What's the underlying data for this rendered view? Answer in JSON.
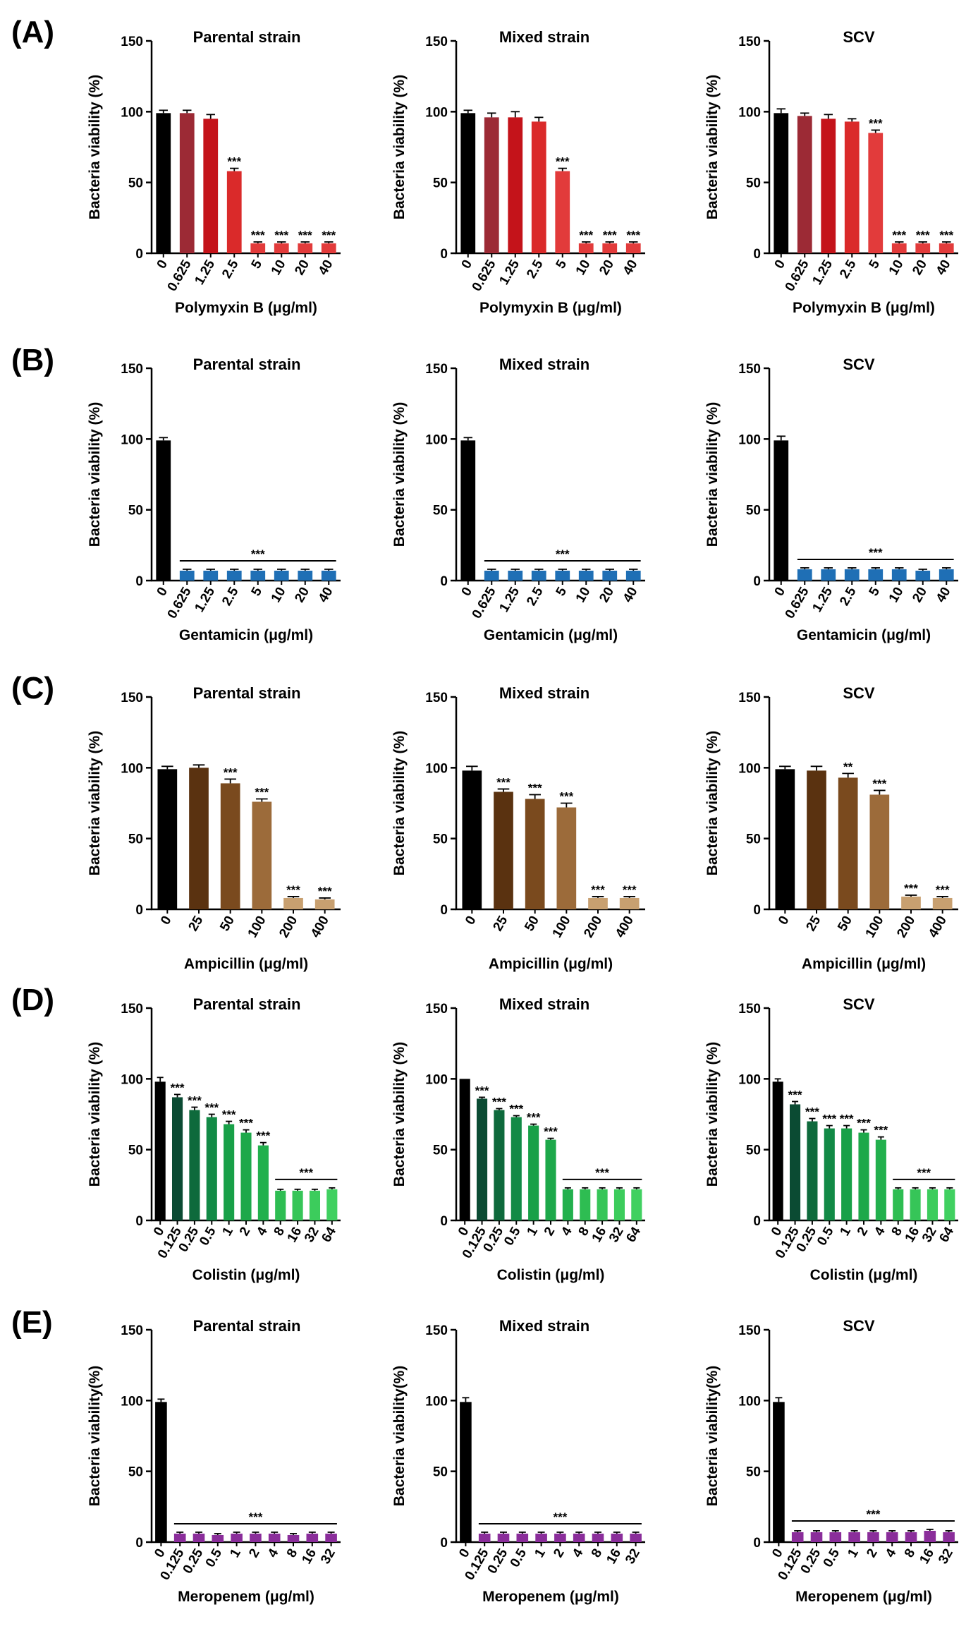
{
  "figure": {
    "row_labels": [
      "(A)",
      "(B)",
      "(C)",
      "(D)",
      "(E)"
    ],
    "panel_titles": [
      "Parental strain",
      "Mixed strain",
      "SCV"
    ]
  },
  "chart_data": [
    {
      "type": "bar",
      "row": "A",
      "title": "Parental strain",
      "xlabel": "Polymyxin B (μg/ml)",
      "ylabel": "Bacteria viability (%)",
      "ylim": [
        0,
        150
      ],
      "yticks": [
        0,
        50,
        100,
        150
      ],
      "categories": [
        "0",
        "0.625",
        "1.25",
        "2.5",
        "5",
        "10",
        "20",
        "40"
      ],
      "values": [
        99,
        99,
        95,
        58,
        7,
        7,
        7,
        7
      ],
      "errors": [
        2,
        2,
        3,
        2,
        1,
        1,
        1,
        1
      ],
      "significance": [
        "",
        "",
        "",
        "***",
        "***",
        "***",
        "***",
        "***"
      ],
      "group_sig": null,
      "colors": [
        "#000000",
        "#9c2a35",
        "#c4131a",
        "#da2a2a",
        "#e23b3b",
        "#e23b3b",
        "#e23b3b",
        "#e23b3b"
      ]
    },
    {
      "type": "bar",
      "row": "A",
      "title": "Mixed strain",
      "xlabel": "Polymyxin B (μg/ml)",
      "ylabel": "Bacteria viability (%)",
      "ylim": [
        0,
        150
      ],
      "yticks": [
        0,
        50,
        100,
        150
      ],
      "categories": [
        "0",
        "0.625",
        "1.25",
        "2.5",
        "5",
        "10",
        "20",
        "40"
      ],
      "values": [
        99,
        96,
        96,
        93,
        58,
        7,
        7,
        7
      ],
      "errors": [
        2,
        3,
        4,
        3,
        2,
        1,
        1,
        1
      ],
      "significance": [
        "",
        "",
        "",
        "",
        "***",
        "***",
        "***",
        "***"
      ],
      "group_sig": null,
      "colors": [
        "#000000",
        "#9c2a35",
        "#c4131a",
        "#da2a2a",
        "#e23b3b",
        "#e23b3b",
        "#e23b3b",
        "#e23b3b"
      ]
    },
    {
      "type": "bar",
      "row": "A",
      "title": "SCV",
      "xlabel": "Polymyxin B (μg/ml)",
      "ylabel": "Bacteria viability (%)",
      "ylim": [
        0,
        150
      ],
      "yticks": [
        0,
        50,
        100,
        150
      ],
      "categories": [
        "0",
        "0.625",
        "1.25",
        "2.5",
        "5",
        "10",
        "20",
        "40"
      ],
      "values": [
        99,
        97,
        95,
        93,
        85,
        7,
        7,
        7
      ],
      "errors": [
        3,
        2,
        3,
        2,
        2,
        1,
        1,
        1
      ],
      "significance": [
        "",
        "",
        "",
        "",
        "***",
        "***",
        "***",
        "***"
      ],
      "group_sig": null,
      "colors": [
        "#000000",
        "#9c2a35",
        "#c4131a",
        "#da2a2a",
        "#e23b3b",
        "#e23b3b",
        "#e23b3b",
        "#e23b3b"
      ]
    },
    {
      "type": "bar",
      "row": "B",
      "title": "Parental strain",
      "xlabel": "Gentamicin (μg/ml)",
      "ylabel": "Bacteria viability (%)",
      "ylim": [
        0,
        150
      ],
      "yticks": [
        0,
        50,
        100,
        150
      ],
      "categories": [
        "0",
        "0.625",
        "1.25",
        "2.5",
        "5",
        "10",
        "20",
        "40"
      ],
      "values": [
        99,
        7,
        7,
        7,
        7,
        7,
        7,
        7
      ],
      "errors": [
        2,
        1,
        1,
        1,
        1,
        1,
        1,
        1
      ],
      "significance": [
        "",
        "",
        "",
        "",
        "",
        "",
        "",
        ""
      ],
      "group_sig": {
        "label": "***",
        "from": 1,
        "to": 7
      },
      "colors": [
        "#000000",
        "#1f6fb5",
        "#1f6fb5",
        "#1f6fb5",
        "#1f6fb5",
        "#1f6fb5",
        "#1f6fb5",
        "#1f6fb5"
      ]
    },
    {
      "type": "bar",
      "row": "B",
      "title": "Mixed strain",
      "xlabel": "Gentamicin (μg/ml)",
      "ylabel": "Bacteria viability (%)",
      "ylim": [
        0,
        150
      ],
      "yticks": [
        0,
        50,
        100,
        150
      ],
      "categories": [
        "0",
        "0.625",
        "1.25",
        "2.5",
        "5",
        "10",
        "20",
        "40"
      ],
      "values": [
        99,
        7,
        7,
        7,
        7,
        7,
        7,
        7
      ],
      "errors": [
        2,
        1,
        1,
        1,
        1,
        1,
        1,
        1
      ],
      "significance": [
        "",
        "",
        "",
        "",
        "",
        "",
        "",
        ""
      ],
      "group_sig": {
        "label": "***",
        "from": 1,
        "to": 7
      },
      "colors": [
        "#000000",
        "#1f6fb5",
        "#1f6fb5",
        "#1f6fb5",
        "#1f6fb5",
        "#1f6fb5",
        "#1f6fb5",
        "#1f6fb5"
      ]
    },
    {
      "type": "bar",
      "row": "B",
      "title": "SCV",
      "xlabel": "Gentamicin (μg/ml)",
      "ylabel": "Bacteria viability (%)",
      "ylim": [
        0,
        150
      ],
      "yticks": [
        0,
        50,
        100,
        150
      ],
      "categories": [
        "0",
        "0.625",
        "1.25",
        "2.5",
        "5",
        "10",
        "20",
        "40"
      ],
      "values": [
        99,
        8,
        8,
        8,
        8,
        8,
        7,
        8
      ],
      "errors": [
        3,
        1,
        1,
        1,
        1,
        1,
        1,
        1
      ],
      "significance": [
        "",
        "",
        "",
        "",
        "",
        "",
        "",
        ""
      ],
      "group_sig": {
        "label": "***",
        "from": 1,
        "to": 7
      },
      "colors": [
        "#000000",
        "#1f6fb5",
        "#1f6fb5",
        "#1f6fb5",
        "#1f6fb5",
        "#1f6fb5",
        "#1f6fb5",
        "#1f6fb5"
      ]
    },
    {
      "type": "bar",
      "row": "C",
      "title": "Parental strain",
      "xlabel": "Ampicillin (μg/ml)",
      "ylabel": "Bacteria viability (%)",
      "ylim": [
        0,
        150
      ],
      "yticks": [
        0,
        50,
        100,
        150
      ],
      "categories": [
        "0",
        "25",
        "50",
        "100",
        "200",
        "400"
      ],
      "values": [
        99,
        100,
        89,
        76,
        8,
        7
      ],
      "errors": [
        2,
        2,
        3,
        2,
        1,
        1
      ],
      "significance": [
        "",
        "",
        "***",
        "***",
        "***",
        "***"
      ],
      "group_sig": null,
      "colors": [
        "#000000",
        "#5a3210",
        "#7a4a1e",
        "#9c6b3a",
        "#c8a070",
        "#c8a070"
      ]
    },
    {
      "type": "bar",
      "row": "C",
      "title": "Mixed strain",
      "xlabel": "Ampicillin (μg/ml)",
      "ylabel": "Bacteria viability (%)",
      "ylim": [
        0,
        150
      ],
      "yticks": [
        0,
        50,
        100,
        150
      ],
      "categories": [
        "0",
        "25",
        "50",
        "100",
        "200",
        "400"
      ],
      "values": [
        98,
        83,
        78,
        72,
        8,
        8
      ],
      "errors": [
        3,
        2,
        3,
        3,
        1,
        1
      ],
      "significance": [
        "",
        "***",
        "***",
        "***",
        "***",
        "***"
      ],
      "group_sig": null,
      "colors": [
        "#000000",
        "#5a3210",
        "#7a4a1e",
        "#9c6b3a",
        "#c8a070",
        "#c8a070"
      ]
    },
    {
      "type": "bar",
      "row": "C",
      "title": "SCV",
      "xlabel": "Ampicillin (μg/ml)",
      "ylabel": "Bacteria viability (%)",
      "ylim": [
        0,
        150
      ],
      "yticks": [
        0,
        50,
        100,
        150
      ],
      "categories": [
        "0",
        "25",
        "50",
        "100",
        "200",
        "400"
      ],
      "values": [
        99,
        98,
        93,
        81,
        9,
        8
      ],
      "errors": [
        2,
        3,
        3,
        3,
        1,
        1
      ],
      "significance": [
        "",
        "",
        "**",
        "***",
        "***",
        "***"
      ],
      "group_sig": null,
      "colors": [
        "#000000",
        "#5a3210",
        "#7a4a1e",
        "#9c6b3a",
        "#c8a070",
        "#c8a070"
      ]
    },
    {
      "type": "bar",
      "row": "D",
      "title": "Parental strain",
      "xlabel": "Colistin (μg/ml)",
      "ylabel": "Bacteria viability (%)",
      "ylim": [
        0,
        150
      ],
      "yticks": [
        0,
        50,
        100,
        150
      ],
      "categories": [
        "0",
        "0.125",
        "0.25",
        "0.5",
        "1",
        "2",
        "4",
        "8",
        "16",
        "32",
        "64"
      ],
      "values": [
        98,
        87,
        78,
        73,
        68,
        62,
        53,
        21,
        21,
        21,
        22
      ],
      "errors": [
        3,
        2,
        2,
        2,
        2,
        2,
        2,
        1,
        1,
        1,
        1
      ],
      "significance": [
        "",
        "***",
        "***",
        "***",
        "***",
        "***",
        "***",
        "",
        "",
        "",
        ""
      ],
      "group_sig": {
        "label": "***",
        "from": 7,
        "to": 10
      },
      "colors": [
        "#000000",
        "#0b4b33",
        "#0e6a3c",
        "#128a46",
        "#18a048",
        "#1da84a",
        "#22b04d",
        "#2ebd52",
        "#36c558",
        "#3ccc5c",
        "#40d060"
      ]
    },
    {
      "type": "bar",
      "row": "D",
      "title": "Mixed strain",
      "xlabel": "Colistin (μg/ml)",
      "ylabel": "Bacteria viability (%)",
      "ylim": [
        0,
        150
      ],
      "yticks": [
        0,
        50,
        100,
        150
      ],
      "categories": [
        "0",
        "0.125",
        "0.25",
        "0.5",
        "1",
        "2",
        "4",
        "8",
        "16",
        "32",
        "64"
      ],
      "values": [
        100,
        86,
        78,
        73,
        67,
        57,
        22,
        22,
        22,
        22,
        22
      ],
      "errors": [
        0,
        1,
        1,
        1,
        1,
        1,
        1,
        1,
        1,
        1,
        1
      ],
      "significance": [
        "",
        "***",
        "***",
        "***",
        "***",
        "***",
        "",
        "",
        "",
        "",
        ""
      ],
      "group_sig": {
        "label": "***",
        "from": 6,
        "to": 10
      },
      "colors": [
        "#000000",
        "#0b4b33",
        "#0e6a3c",
        "#128a46",
        "#18a048",
        "#1da84a",
        "#22b04d",
        "#2ebd52",
        "#36c558",
        "#3ccc5c",
        "#40d060"
      ]
    },
    {
      "type": "bar",
      "row": "D",
      "title": "SCV",
      "xlabel": "Colistin (μg/ml)",
      "ylabel": "Bacteria viability (%)",
      "ylim": [
        0,
        150
      ],
      "yticks": [
        0,
        50,
        100,
        150
      ],
      "categories": [
        "0",
        "0.125",
        "0.25",
        "0.5",
        "1",
        "2",
        "4",
        "8",
        "16",
        "32",
        "64"
      ],
      "values": [
        98,
        82,
        70,
        65,
        65,
        62,
        57,
        22,
        22,
        22,
        22
      ],
      "errors": [
        2,
        2,
        2,
        2,
        2,
        2,
        2,
        1,
        1,
        1,
        1
      ],
      "significance": [
        "",
        "***",
        "***",
        "***",
        "***",
        "***",
        "***",
        "",
        "",
        "",
        ""
      ],
      "group_sig": {
        "label": "***",
        "from": 7,
        "to": 10
      },
      "colors": [
        "#000000",
        "#0b4b33",
        "#0e6a3c",
        "#128a46",
        "#18a048",
        "#1da84a",
        "#22b04d",
        "#2ebd52",
        "#36c558",
        "#3ccc5c",
        "#40d060"
      ]
    },
    {
      "type": "bar",
      "row": "E",
      "title": "Parental strain",
      "xlabel": "Meropenem (μg/ml)",
      "ylabel": "Bacteria viability(%)",
      "ylim": [
        0,
        150
      ],
      "yticks": [
        0,
        50,
        100,
        150
      ],
      "categories": [
        "0",
        "0.125",
        "0.25",
        "0.5",
        "1",
        "2",
        "4",
        "8",
        "16",
        "32"
      ],
      "values": [
        99,
        6,
        6,
        5,
        6,
        6,
        6,
        5,
        6,
        6
      ],
      "errors": [
        2,
        1,
        1,
        1,
        1,
        1,
        1,
        1,
        1,
        1
      ],
      "significance": [
        "",
        "",
        "",
        "",
        "",
        "",
        "",
        "",
        "",
        ""
      ],
      "group_sig": {
        "label": "***",
        "from": 1,
        "to": 9
      },
      "colors": [
        "#000000",
        "#8a2d9a",
        "#8a2d9a",
        "#8a2d9a",
        "#8a2d9a",
        "#8a2d9a",
        "#8a2d9a",
        "#8a2d9a",
        "#8a2d9a",
        "#8a2d9a"
      ]
    },
    {
      "type": "bar",
      "row": "E",
      "title": "Mixed strain",
      "xlabel": "Meropenem (μg/ml)",
      "ylabel": "Bacteria viability(%)",
      "ylim": [
        0,
        150
      ],
      "yticks": [
        0,
        50,
        100,
        150
      ],
      "categories": [
        "0",
        "0.125",
        "0.25",
        "0.5",
        "1",
        "2",
        "4",
        "8",
        "16",
        "32"
      ],
      "values": [
        99,
        6,
        6,
        6,
        6,
        6,
        6,
        6,
        6,
        6
      ],
      "errors": [
        3,
        1,
        1,
        1,
        1,
        1,
        1,
        1,
        1,
        1
      ],
      "significance": [
        "",
        "",
        "",
        "",
        "",
        "",
        "",
        "",
        "",
        ""
      ],
      "group_sig": {
        "label": "***",
        "from": 1,
        "to": 9
      },
      "colors": [
        "#000000",
        "#8a2d9a",
        "#8a2d9a",
        "#8a2d9a",
        "#8a2d9a",
        "#8a2d9a",
        "#8a2d9a",
        "#8a2d9a",
        "#8a2d9a",
        "#8a2d9a"
      ]
    },
    {
      "type": "bar",
      "row": "E",
      "title": "SCV",
      "xlabel": "Meropenem (μg/ml)",
      "ylabel": "Bacteria viability(%)",
      "ylim": [
        0,
        150
      ],
      "yticks": [
        0,
        50,
        100,
        150
      ],
      "categories": [
        "0",
        "0.125",
        "0.25",
        "0.5",
        "1",
        "2",
        "4",
        "8",
        "16",
        "32"
      ],
      "values": [
        99,
        7,
        7,
        7,
        7,
        7,
        7,
        7,
        8,
        7
      ],
      "errors": [
        3,
        1,
        1,
        1,
        1,
        1,
        1,
        1,
        1,
        1
      ],
      "significance": [
        "",
        "",
        "",
        "",
        "",
        "",
        "",
        "",
        "",
        ""
      ],
      "group_sig": {
        "label": "***",
        "from": 1,
        "to": 9
      },
      "colors": [
        "#000000",
        "#8a2d9a",
        "#8a2d9a",
        "#8a2d9a",
        "#8a2d9a",
        "#8a2d9a",
        "#8a2d9a",
        "#8a2d9a",
        "#8a2d9a",
        "#8a2d9a"
      ]
    }
  ]
}
